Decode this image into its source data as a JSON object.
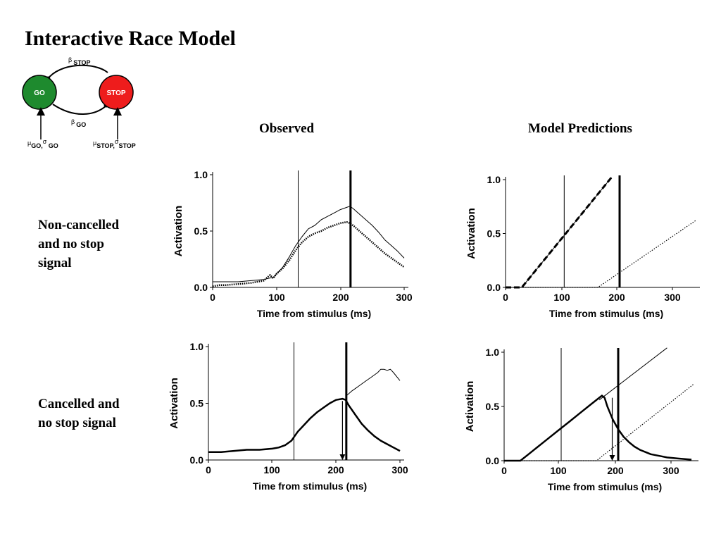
{
  "title": "Interactive Race Model",
  "diagram": {
    "go_label": "GO",
    "stop_label": "STOP",
    "beta_stop": {
      "sym": "β",
      "sub": "STOP"
    },
    "beta_go": {
      "sym": "β",
      "sub": "GO"
    },
    "go_input": {
      "mu": "μ",
      "mu_sub": "GO,",
      "sigma": "σ",
      "sigma_sub": " GO"
    },
    "stop_input": {
      "mu": "μ",
      "mu_sub": "STOP,",
      "sigma": "σ",
      "sigma_sub": "STOP"
    },
    "colors": {
      "go": "#1e8a2e",
      "stop": "#ee1c1c"
    }
  },
  "columns": {
    "observed": "Observed",
    "model": "Model Predictions"
  },
  "rows": {
    "row1": [
      "Non-cancelled",
      "and no stop",
      "signal"
    ],
    "row2": [
      "Cancelled and",
      "no stop signal"
    ]
  },
  "chart_data": [
    {
      "id": "observed-noncancelled",
      "type": "line",
      "xlabel": "Time from stimulus (ms)",
      "ylabel": "Activation",
      "xlim": [
        0,
        300
      ],
      "ylim": [
        0,
        1.0
      ],
      "xticks": [
        "0",
        "100",
        "200",
        "300"
      ],
      "yticks": [
        "0.0",
        "0.5",
        "1.0"
      ],
      "vlines": [
        {
          "x": 134,
          "style": "thin"
        },
        {
          "x": 216,
          "style": "thick"
        }
      ],
      "arrows": [],
      "series": [
        {
          "style": "thin",
          "x": [
            0,
            10,
            20,
            40,
            60,
            80,
            95,
            100,
            110,
            120,
            130,
            140,
            150,
            160,
            170,
            180,
            190,
            200,
            210,
            215,
            220,
            230,
            240,
            250,
            260,
            270,
            280,
            290,
            300
          ],
          "y": [
            0.05,
            0.05,
            0.05,
            0.05,
            0.06,
            0.07,
            0.09,
            0.12,
            0.18,
            0.27,
            0.37,
            0.45,
            0.52,
            0.55,
            0.6,
            0.63,
            0.66,
            0.69,
            0.71,
            0.72,
            0.7,
            0.65,
            0.6,
            0.55,
            0.49,
            0.42,
            0.37,
            0.32,
            0.26
          ]
        },
        {
          "style": "dotted-thick",
          "x": [
            0,
            10,
            20,
            40,
            60,
            80,
            90,
            95,
            100,
            110,
            120,
            130,
            140,
            150,
            160,
            170,
            180,
            190,
            200,
            210,
            215,
            220,
            230,
            240,
            250,
            260,
            270,
            280,
            290,
            300
          ],
          "y": [
            0.01,
            0.02,
            0.02,
            0.03,
            0.04,
            0.06,
            0.11,
            0.08,
            0.12,
            0.17,
            0.24,
            0.33,
            0.4,
            0.45,
            0.48,
            0.5,
            0.53,
            0.55,
            0.57,
            0.58,
            0.57,
            0.55,
            0.5,
            0.45,
            0.4,
            0.35,
            0.3,
            0.26,
            0.22,
            0.18
          ]
        }
      ]
    },
    {
      "id": "model-noncancelled",
      "type": "line",
      "xlabel": "Time from stimulus  (ms)",
      "ylabel": "Activation",
      "xlim": [
        0,
        350
      ],
      "ylim": [
        0,
        1.0
      ],
      "xticks": [
        "0",
        "100",
        "200",
        "300"
      ],
      "yticks": [
        "0.0",
        "0.5",
        "1.0"
      ],
      "vlines": [
        {
          "x": 108,
          "style": "thin"
        },
        {
          "x": 210,
          "style": "thick"
        }
      ],
      "arrows": [],
      "series": [
        {
          "style": "dashed-thick",
          "x": [
            0,
            30,
            195
          ],
          "y": [
            0,
            0,
            1.02
          ]
        },
        {
          "style": "thin",
          "x": [
            30,
            195
          ],
          "y": [
            0,
            1.02
          ]
        },
        {
          "style": "dotted",
          "x": [
            0,
            170,
            350
          ],
          "y": [
            0,
            0,
            0.62
          ]
        }
      ]
    },
    {
      "id": "observed-cancelled",
      "type": "line",
      "xlabel": "Time from stimulus (ms)",
      "ylabel": "Activation",
      "xlim": [
        0,
        300
      ],
      "ylim": [
        0,
        1.0
      ],
      "xticks": [
        "0",
        "100",
        "200",
        "300"
      ],
      "yticks": [
        "0.0",
        "0.5",
        "1.0"
      ],
      "vlines": [
        {
          "x": 134,
          "style": "thin"
        },
        {
          "x": 216,
          "style": "thick"
        }
      ],
      "arrows": [
        {
          "x": 210,
          "from": 0.52,
          "to": 0.0
        }
      ],
      "series": [
        {
          "style": "thick",
          "x": [
            0,
            20,
            40,
            60,
            80,
            100,
            110,
            120,
            130,
            135,
            140,
            150,
            160,
            170,
            180,
            190,
            200,
            210,
            215,
            220,
            230,
            240,
            250,
            260,
            270,
            280,
            290,
            300
          ],
          "y": [
            0.07,
            0.07,
            0.08,
            0.09,
            0.09,
            0.1,
            0.11,
            0.13,
            0.17,
            0.21,
            0.25,
            0.31,
            0.37,
            0.42,
            0.46,
            0.5,
            0.53,
            0.54,
            0.53,
            0.48,
            0.4,
            0.32,
            0.26,
            0.21,
            0.17,
            0.14,
            0.11,
            0.08
          ]
        },
        {
          "style": "thin",
          "x": [
            215,
            225,
            235,
            245,
            255,
            265,
            270,
            275,
            280,
            285,
            290,
            300
          ],
          "y": [
            0.56,
            0.61,
            0.65,
            0.69,
            0.73,
            0.77,
            0.8,
            0.8,
            0.79,
            0.8,
            0.77,
            0.7
          ]
        }
      ]
    },
    {
      "id": "model-cancelled",
      "type": "line",
      "xlabel": "Time from stimulus  (ms)",
      "ylabel": "Activation",
      "xlim": [
        0,
        350
      ],
      "ylim": [
        0,
        1.0
      ],
      "xticks": [
        "0",
        "100",
        "200",
        "300"
      ],
      "yticks": [
        "0.0",
        "0.5",
        "1.0"
      ],
      "vlines": [
        {
          "x": 105,
          "style": "thin"
        },
        {
          "x": 210,
          "style": "thick"
        }
      ],
      "arrows": [
        {
          "x": 199,
          "from": 0.58,
          "to": 0.0
        }
      ],
      "series": [
        {
          "style": "thick",
          "x": [
            0,
            30,
            45,
            60,
            80,
            100,
            120,
            140,
            160,
            180,
            185,
            190,
            195,
            200,
            210,
            220,
            230,
            240,
            250,
            260,
            270,
            280,
            290,
            300,
            320,
            345
          ],
          "y": [
            0,
            0,
            0.06,
            0.12,
            0.2,
            0.28,
            0.36,
            0.44,
            0.52,
            0.6,
            0.58,
            0.5,
            0.44,
            0.38,
            0.29,
            0.22,
            0.17,
            0.13,
            0.1,
            0.08,
            0.06,
            0.05,
            0.04,
            0.03,
            0.02,
            0.01
          ]
        },
        {
          "style": "thin",
          "x": [
            175,
            300
          ],
          "y": [
            0.56,
            1.04
          ]
        },
        {
          "style": "dotted",
          "x": [
            0,
            170,
            350
          ],
          "y": [
            0,
            0,
            0.71
          ]
        }
      ]
    }
  ]
}
